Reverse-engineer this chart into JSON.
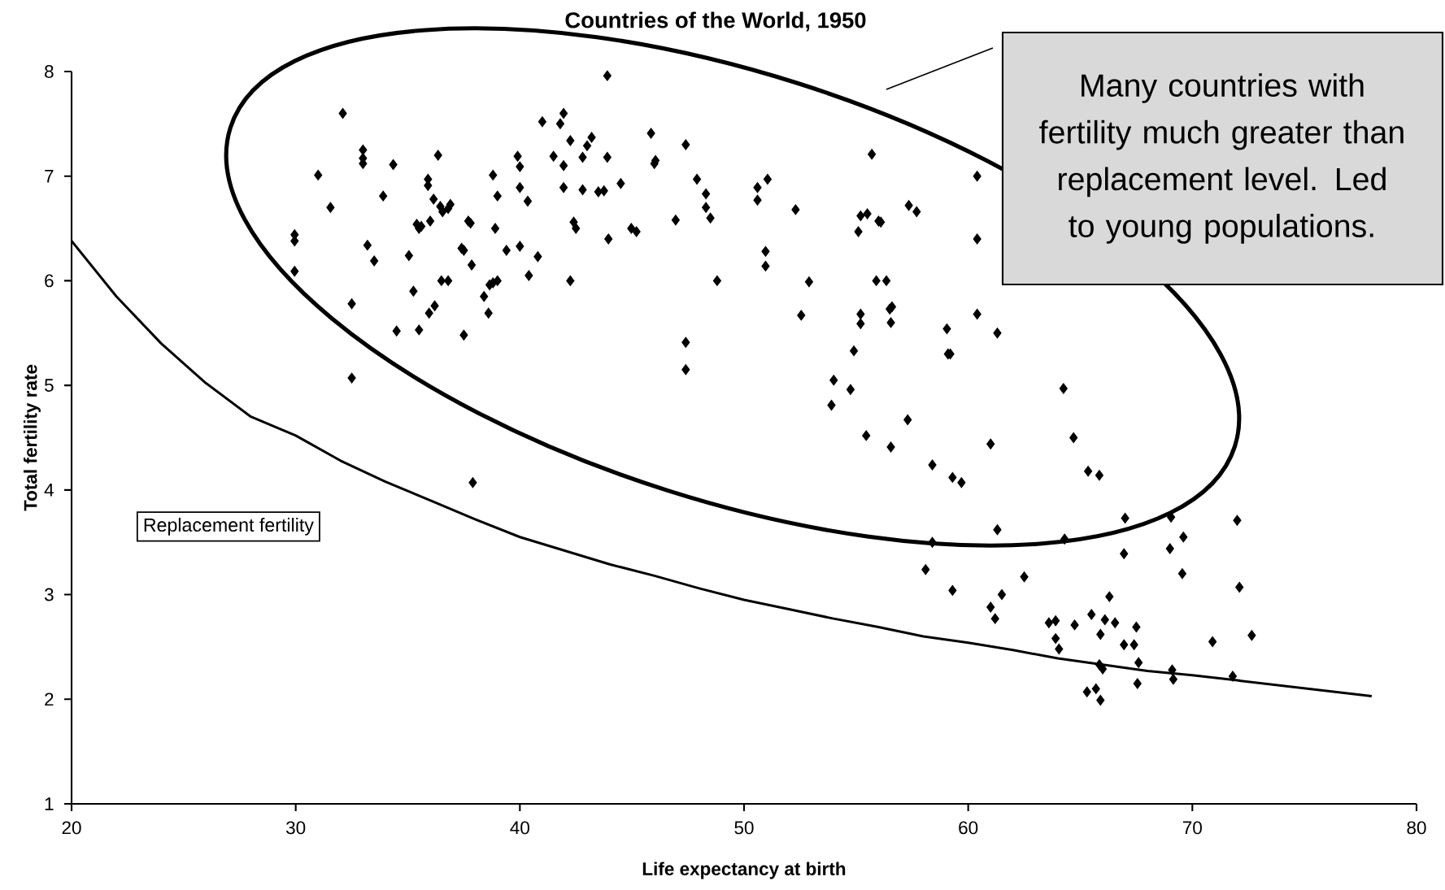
{
  "chart_data": {
    "type": "scatter",
    "title": "Countries of the World, 1950",
    "xlabel": "Life expectancy at birth",
    "ylabel": "Total fertility rate",
    "xlim": [
      20,
      80
    ],
    "ylim": [
      1,
      8
    ],
    "xticks": [
      20,
      30,
      40,
      50,
      60,
      70,
      80
    ],
    "yticks": [
      1,
      2,
      3,
      4,
      5,
      6,
      7,
      8
    ],
    "grid": false,
    "legend": false,
    "marker": "diamond",
    "annotations": [
      "Many countries with fertility much greater than replacement level. Led to young populations."
    ],
    "series": [
      {
        "color": "#000000",
        "x": [
          29.95,
          29.95,
          29.95,
          31.0,
          31.55,
          32.1,
          32.5,
          32.5,
          33.0,
          33.0,
          33.0,
          33.2,
          33.5,
          33.9,
          34.35,
          34.5,
          35.05,
          35.25,
          35.4,
          35.5,
          35.6,
          35.5,
          35.9,
          35.9,
          36.0,
          35.95,
          36.15,
          36.2,
          36.35,
          36.45,
          36.55,
          36.5,
          36.8,
          36.8,
          36.9,
          37.4,
          37.5,
          37.5,
          37.7,
          37.8,
          37.85,
          37.9,
          38.4,
          38.6,
          38.65,
          38.8,
          39.0,
          38.8,
          38.9,
          39.0,
          39.4,
          39.9,
          40.0,
          40.0,
          40.0,
          40.35,
          40.4,
          40.8,
          41.0,
          41.5,
          41.8,
          41.95,
          41.95,
          41.95,
          42.25,
          42.25,
          42.4,
          42.5,
          42.8,
          42.8,
          43.0,
          43.2,
          43.5,
          43.75,
          43.9,
          43.9,
          43.95,
          44.5,
          44.97,
          45.2,
          45.85,
          46.0,
          46.05,
          46.95,
          47.4,
          47.4,
          47.4,
          47.9,
          48.3,
          48.3,
          48.5,
          48.8,
          50.6,
          50.6,
          51.05,
          50.96,
          50.96,
          52.3,
          52.55,
          52.9,
          53.9,
          54.0,
          54.75,
          54.9,
          55.1,
          55.2,
          55.2,
          55.2,
          55.5,
          55.7,
          55.9,
          56.35,
          56.1,
          56.0,
          56.6,
          56.5,
          56.55,
          55.45,
          56.55,
          57.3,
          57.35,
          57.7,
          58.4,
          59.05,
          59.1,
          59.2,
          59.3,
          59.7,
          60.4,
          60.4,
          60.4,
          61.0,
          61.3,
          58.4,
          58.1,
          59.3,
          61.0,
          61.2,
          61.5,
          61.3,
          62.5,
          64.25,
          64.7,
          65.35,
          65.85,
          64.3,
          63.6,
          63.9,
          63.9,
          64.05,
          64.75,
          65.5,
          66.1,
          66.55,
          65.85,
          66.0,
          65.9,
          66.3,
          65.3,
          65.7,
          65.9,
          67.0,
          66.95,
          66.95,
          67.4,
          67.5,
          67.6,
          67.55,
          69.05,
          69.0,
          69.6,
          69.55,
          69.1,
          69.15,
          70.9,
          72.0,
          72.1,
          72.65,
          71.8
        ],
        "values": [
          6.44,
          6.38,
          6.09,
          7.01,
          6.7,
          7.6,
          5.78,
          5.07,
          7.25,
          7.17,
          7.12,
          6.34,
          6.19,
          6.81,
          7.11,
          5.52,
          6.24,
          5.9,
          6.54,
          6.5,
          6.52,
          5.53,
          6.97,
          6.91,
          6.57,
          5.69,
          6.78,
          5.76,
          7.2,
          6.71,
          6.66,
          6.0,
          6.0,
          6.69,
          6.73,
          6.31,
          6.29,
          5.48,
          6.57,
          6.55,
          6.15,
          4.07,
          5.85,
          5.69,
          5.96,
          5.98,
          6.0,
          7.01,
          6.5,
          6.81,
          6.29,
          7.19,
          7.09,
          6.89,
          6.33,
          6.76,
          6.05,
          6.23,
          7.52,
          7.19,
          7.5,
          7.6,
          6.89,
          7.1,
          6.0,
          7.34,
          6.56,
          6.5,
          6.87,
          7.18,
          7.29,
          7.37,
          6.85,
          6.86,
          7.96,
          7.18,
          6.4,
          6.93,
          6.5,
          6.47,
          7.41,
          7.12,
          7.15,
          6.58,
          7.3,
          5.41,
          5.15,
          6.97,
          6.83,
          6.7,
          6.6,
          6.0,
          6.89,
          6.77,
          6.97,
          6.28,
          6.14,
          6.68,
          5.67,
          5.99,
          4.81,
          5.05,
          4.96,
          5.33,
          6.47,
          5.68,
          5.59,
          6.62,
          6.64,
          7.21,
          6.0,
          6.0,
          6.56,
          6.57,
          5.75,
          5.73,
          5.6,
          4.52,
          4.41,
          4.67,
          6.72,
          6.66,
          4.24,
          5.54,
          5.3,
          5.3,
          4.12,
          4.07,
          7.0,
          6.4,
          5.68,
          4.44,
          5.5,
          3.5,
          3.24,
          3.04,
          2.88,
          2.77,
          3.0,
          3.62,
          3.17,
          4.97,
          4.5,
          4.18,
          4.14,
          3.53,
          2.73,
          2.75,
          2.58,
          2.48,
          2.71,
          2.81,
          2.76,
          2.73,
          2.33,
          2.29,
          2.62,
          2.98,
          2.07,
          2.1,
          1.99,
          3.73,
          3.39,
          2.52,
          2.52,
          2.69,
          2.35,
          2.15,
          3.74,
          3.44,
          3.55,
          3.2,
          2.28,
          2.19,
          2.55,
          3.71,
          3.07,
          2.61,
          2.22
        ]
      },
      {
        "type": "line",
        "name": "Replacement fertility",
        "color": "#000000",
        "marker": "none",
        "x": [
          20,
          22,
          24,
          26,
          28,
          30,
          32,
          34,
          36,
          38,
          40,
          42,
          44,
          46,
          48,
          50,
          52,
          54,
          56,
          58,
          60,
          62,
          64,
          66,
          68,
          70,
          72,
          74,
          76,
          78
        ],
        "values": [
          6.38,
          5.85,
          5.4,
          5.02,
          4.7,
          4.52,
          4.28,
          4.08,
          3.9,
          3.72,
          3.55,
          3.42,
          3.29,
          3.18,
          3.06,
          2.95,
          2.86,
          2.77,
          2.69,
          2.6,
          2.54,
          2.47,
          2.39,
          2.33,
          2.27,
          2.23,
          2.18,
          2.13,
          2.08,
          2.03
        ]
      }
    ]
  }
}
